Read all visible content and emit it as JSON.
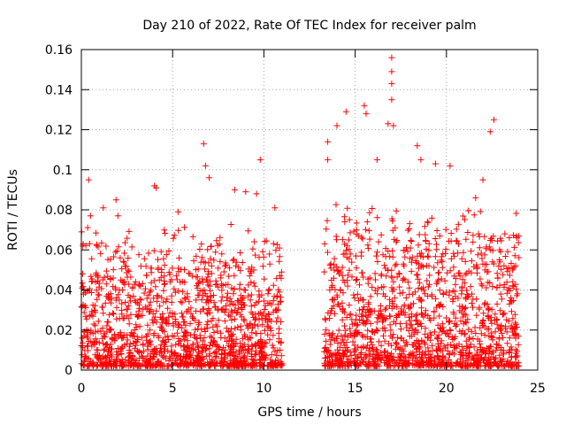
{
  "chart_data": {
    "type": "scatter",
    "title": "Day 210 of 2022, Rate Of TEC Index for receiver palm",
    "xlabel": "GPS time / hours",
    "ylabel": "ROTI / TECUs",
    "xlim": [
      0,
      25
    ],
    "ylim": [
      0,
      0.16
    ],
    "x_ticks": [
      0,
      5,
      10,
      15,
      20,
      25
    ],
    "x_tick_labels": [
      "0",
      "5",
      "10",
      "15",
      "20",
      "25"
    ],
    "y_ticks": [
      0,
      0.02,
      0.04,
      0.06,
      0.08,
      0.1,
      0.12,
      0.14,
      0.16
    ],
    "y_tick_labels": [
      "0",
      "0.02",
      "0.04",
      "0.06",
      "0.08",
      "0.1",
      "0.12",
      "0.14",
      "0.16"
    ],
    "grid": true,
    "marker": "+",
    "marker_color": "#ff0000",
    "series": [
      {
        "name": "ROTI",
        "segments": [
          {
            "x_range": [
              0.0,
              11.0
            ],
            "typical_max": 0.06
          },
          {
            "x_range": [
              13.3,
              24.0
            ],
            "typical_max": 0.07
          }
        ],
        "peaks": [
          {
            "x": 0.1,
            "y": 0.063
          },
          {
            "x": 0.4,
            "y": 0.095
          },
          {
            "x": 0.5,
            "y": 0.077
          },
          {
            "x": 1.2,
            "y": 0.081
          },
          {
            "x": 1.9,
            "y": 0.085
          },
          {
            "x": 2.0,
            "y": 0.077
          },
          {
            "x": 4.0,
            "y": 0.092
          },
          {
            "x": 4.1,
            "y": 0.091
          },
          {
            "x": 5.3,
            "y": 0.079
          },
          {
            "x": 6.7,
            "y": 0.113
          },
          {
            "x": 6.8,
            "y": 0.102
          },
          {
            "x": 7.0,
            "y": 0.096
          },
          {
            "x": 8.4,
            "y": 0.09
          },
          {
            "x": 9.0,
            "y": 0.089
          },
          {
            "x": 9.6,
            "y": 0.088
          },
          {
            "x": 9.8,
            "y": 0.105
          },
          {
            "x": 10.6,
            "y": 0.081
          },
          {
            "x": 13.5,
            "y": 0.114
          },
          {
            "x": 13.5,
            "y": 0.105
          },
          {
            "x": 14.0,
            "y": 0.122
          },
          {
            "x": 14.5,
            "y": 0.129
          },
          {
            "x": 15.5,
            "y": 0.132
          },
          {
            "x": 15.6,
            "y": 0.128
          },
          {
            "x": 16.2,
            "y": 0.105
          },
          {
            "x": 16.8,
            "y": 0.123
          },
          {
            "x": 17.0,
            "y": 0.156
          },
          {
            "x": 17.0,
            "y": 0.149
          },
          {
            "x": 17.0,
            "y": 0.143
          },
          {
            "x": 17.0,
            "y": 0.135
          },
          {
            "x": 17.1,
            "y": 0.122
          },
          {
            "x": 18.4,
            "y": 0.112
          },
          {
            "x": 18.6,
            "y": 0.105
          },
          {
            "x": 19.4,
            "y": 0.103
          },
          {
            "x": 20.2,
            "y": 0.102
          },
          {
            "x": 21.6,
            "y": 0.086
          },
          {
            "x": 22.0,
            "y": 0.095
          },
          {
            "x": 22.4,
            "y": 0.119
          },
          {
            "x": 22.6,
            "y": 0.125
          },
          {
            "x": 23.2,
            "y": 0.068
          }
        ]
      }
    ]
  }
}
